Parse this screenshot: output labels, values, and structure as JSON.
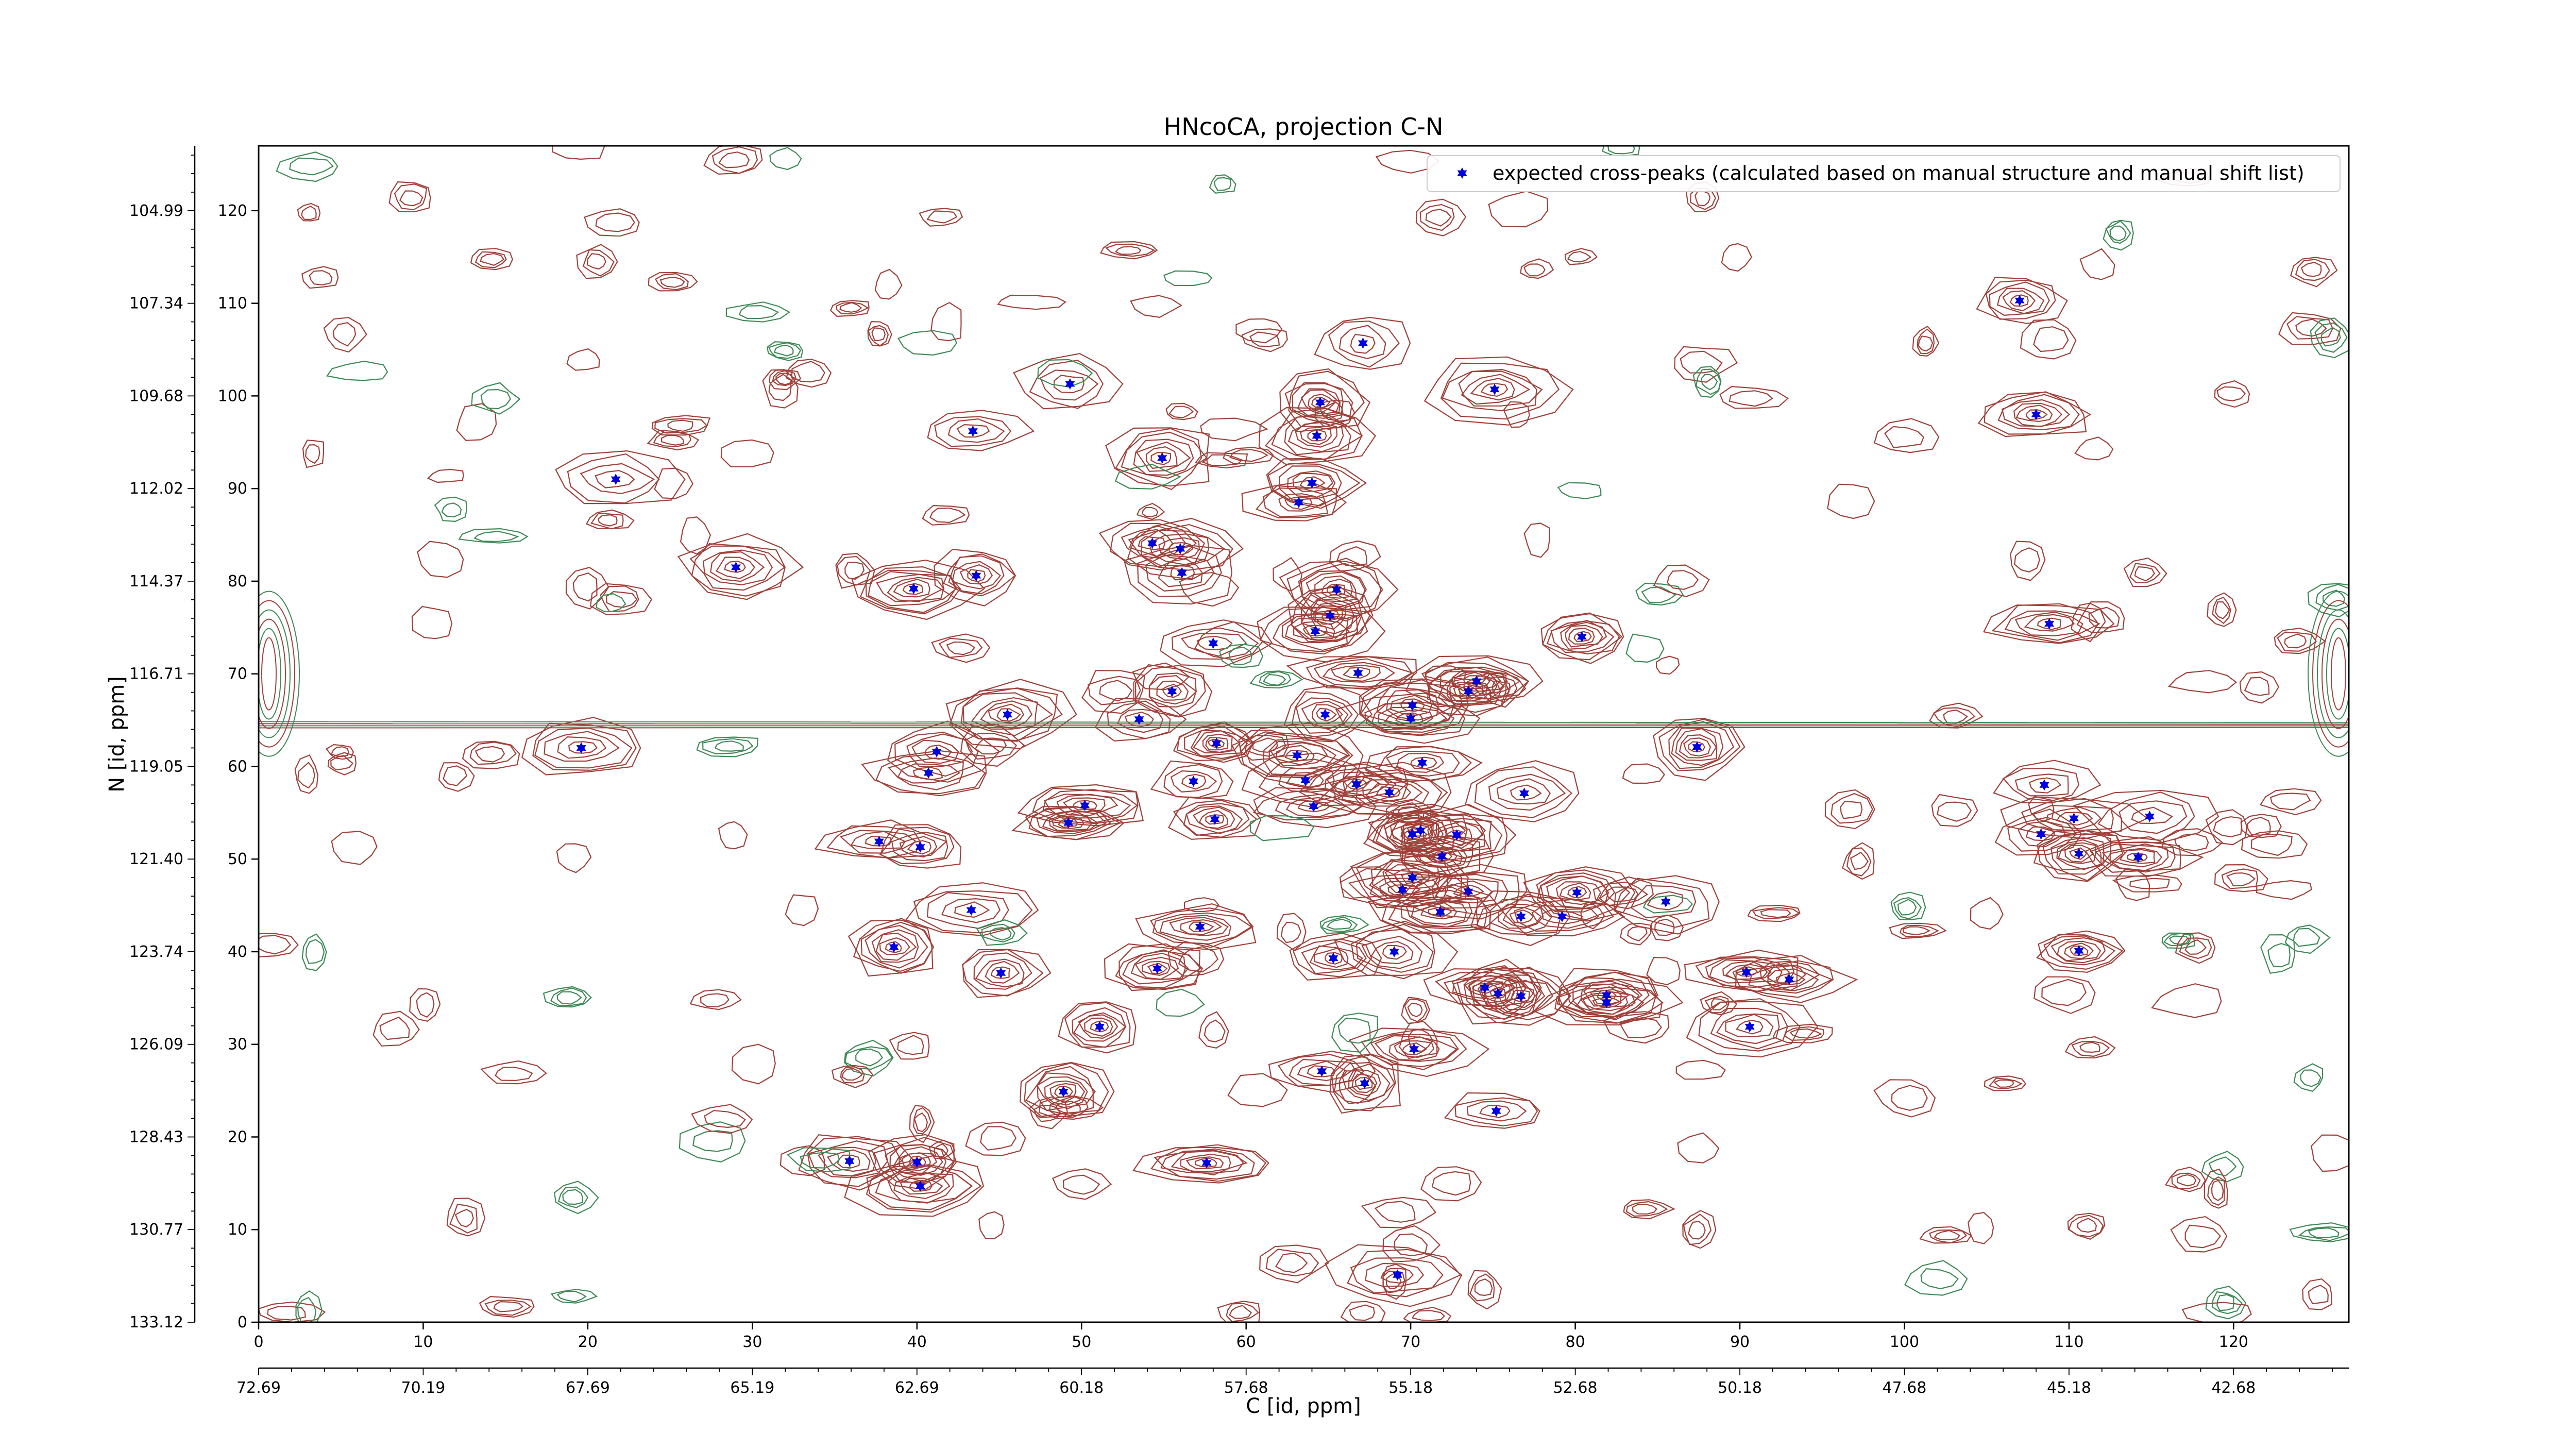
{
  "chart_data": {
    "type": "scatter",
    "title": "HNcoCA, projection C-N",
    "xlabel": "C [id, ppm]",
    "ylabel": "N [id, ppm]",
    "xlim": [
      0,
      127
    ],
    "ylim": [
      0,
      127
    ],
    "x_ticks": [
      "0",
      "10",
      "20",
      "30",
      "40",
      "50",
      "60",
      "70",
      "80",
      "90",
      "100",
      "110",
      "120"
    ],
    "y_ticks": [
      "0",
      "10",
      "20",
      "30",
      "40",
      "50",
      "60",
      "70",
      "80",
      "90",
      "100",
      "110",
      "120"
    ],
    "x_ppm_ticks": [
      "72.69",
      "70.19",
      "67.69",
      "65.19",
      "62.69",
      "60.18",
      "57.68",
      "55.18",
      "52.68",
      "50.18",
      "47.68",
      "45.18",
      "42.68"
    ],
    "y_ppm_ticks": [
      "133.12",
      "130.77",
      "128.43",
      "126.09",
      "123.74",
      "121.40",
      "119.05",
      "116.71",
      "114.37",
      "112.02",
      "109.68",
      "107.34",
      "104.99"
    ],
    "grid": false,
    "legend_position": "top-right",
    "contour_colors": {
      "positive": "#a0413a",
      "negative": "#3f8a57"
    },
    "series": [
      {
        "name": "expected cross-peaks (calculated based on manual structure and manual shift list)",
        "color": "#0000dd",
        "points": [
          [
            21.7,
            91.0
          ],
          [
            19.6,
            62.0
          ],
          [
            29.0,
            81.5
          ],
          [
            37.7,
            51.9
          ],
          [
            40.2,
            51.3
          ],
          [
            35.9,
            17.4
          ],
          [
            40.0,
            17.3
          ],
          [
            40.2,
            14.7
          ],
          [
            38.6,
            40.5
          ],
          [
            39.8,
            79.2
          ],
          [
            43.6,
            80.6
          ],
          [
            43.4,
            96.2
          ],
          [
            41.2,
            61.6
          ],
          [
            40.7,
            59.3
          ],
          [
            43.3,
            44.5
          ],
          [
            45.1,
            37.7
          ],
          [
            45.5,
            65.6
          ],
          [
            49.3,
            101.3
          ],
          [
            48.9,
            24.9
          ],
          [
            51.1,
            31.9
          ],
          [
            50.2,
            55.8
          ],
          [
            49.2,
            53.9
          ],
          [
            54.9,
            93.3
          ],
          [
            54.3,
            84.1
          ],
          [
            56.0,
            83.5
          ],
          [
            56.1,
            80.9
          ],
          [
            54.6,
            38.2
          ],
          [
            53.5,
            65.1
          ],
          [
            55.5,
            68.1
          ],
          [
            58.0,
            73.3
          ],
          [
            58.2,
            62.5
          ],
          [
            56.8,
            58.4
          ],
          [
            58.1,
            54.3
          ],
          [
            57.2,
            42.7
          ],
          [
            57.6,
            17.2
          ],
          [
            67.1,
            105.7
          ],
          [
            64.5,
            99.3
          ],
          [
            64.3,
            95.7
          ],
          [
            64.0,
            90.6
          ],
          [
            63.2,
            88.5
          ],
          [
            65.5,
            79.1
          ],
          [
            65.1,
            76.3
          ],
          [
            64.2,
            74.6
          ],
          [
            66.8,
            70.1
          ],
          [
            64.8,
            65.6
          ],
          [
            63.1,
            61.2
          ],
          [
            63.6,
            58.5
          ],
          [
            64.1,
            55.7
          ],
          [
            66.7,
            58.1
          ],
          [
            68.7,
            57.2
          ],
          [
            70.7,
            60.4
          ],
          [
            70.0,
            65.2
          ],
          [
            70.1,
            66.6
          ],
          [
            73.5,
            68.1
          ],
          [
            74.0,
            69.2
          ],
          [
            75.1,
            100.7
          ],
          [
            70.1,
            52.7
          ],
          [
            70.6,
            53.1
          ],
          [
            71.9,
            50.3
          ],
          [
            72.8,
            52.6
          ],
          [
            70.1,
            48.0
          ],
          [
            69.5,
            46.7
          ],
          [
            71.8,
            44.3
          ],
          [
            73.5,
            46.5
          ],
          [
            76.7,
            43.8
          ],
          [
            79.2,
            43.8
          ],
          [
            80.1,
            46.4
          ],
          [
            65.3,
            39.3
          ],
          [
            69.0,
            40.0
          ],
          [
            74.5,
            36.1
          ],
          [
            75.3,
            35.5
          ],
          [
            76.7,
            35.2
          ],
          [
            81.9,
            35.3
          ],
          [
            81.9,
            34.5
          ],
          [
            70.2,
            29.5
          ],
          [
            64.6,
            27.1
          ],
          [
            67.2,
            25.8
          ],
          [
            75.2,
            22.8
          ],
          [
            69.2,
            5.1
          ],
          [
            80.4,
            74.0
          ],
          [
            76.9,
            57.1
          ],
          [
            87.4,
            62.1
          ],
          [
            85.5,
            45.4
          ],
          [
            90.4,
            37.8
          ],
          [
            93.0,
            37.0
          ],
          [
            90.6,
            31.9
          ],
          [
            107.0,
            110.3
          ],
          [
            108.0,
            98.0
          ],
          [
            108.8,
            75.4
          ],
          [
            108.5,
            58.0
          ],
          [
            108.3,
            52.7
          ],
          [
            110.3,
            54.4
          ],
          [
            110.6,
            50.6
          ],
          [
            114.2,
            50.2
          ],
          [
            114.9,
            54.6
          ],
          [
            110.6,
            40.1
          ]
        ]
      }
    ]
  }
}
